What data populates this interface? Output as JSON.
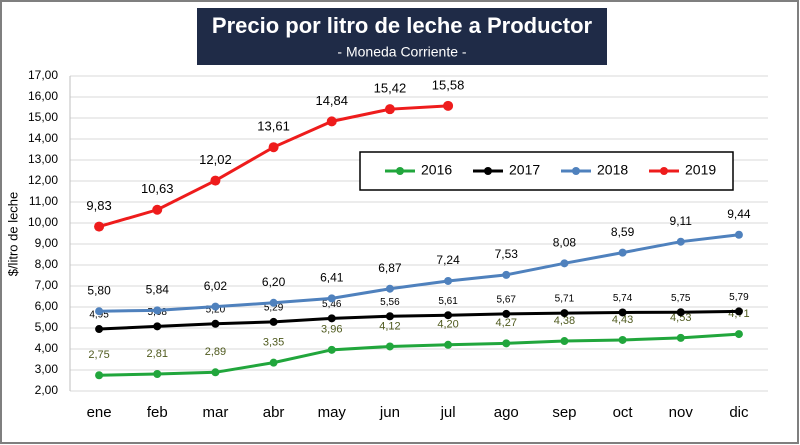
{
  "chart_data": {
    "type": "line",
    "title": "Precio por litro de leche a Productor",
    "subtitle": "- Moneda Corriente -",
    "y_label": "$/litro de leche",
    "categories": [
      "ene",
      "feb",
      "mar",
      "abr",
      "may",
      "jun",
      "jul",
      "ago",
      "sep",
      "oct",
      "nov",
      "dic"
    ],
    "ylim": [
      2,
      17
    ],
    "yticks": [
      {
        "value": 2,
        "label": "2,00"
      },
      {
        "value": 3,
        "label": "3,00"
      },
      {
        "value": 4,
        "label": "4,00"
      },
      {
        "value": 5,
        "label": "5,00"
      },
      {
        "value": 6,
        "label": "6,00"
      },
      {
        "value": 7,
        "label": "7,00"
      },
      {
        "value": 8,
        "label": "8,00"
      },
      {
        "value": 9,
        "label": "9,00"
      },
      {
        "value": 10,
        "label": "10,00"
      },
      {
        "value": 11,
        "label": "11,00"
      },
      {
        "value": 12,
        "label": "12,00"
      },
      {
        "value": 13,
        "label": "13,00"
      },
      {
        "value": 14,
        "label": "14,00"
      },
      {
        "value": 15,
        "label": "15,00"
      },
      {
        "value": 16,
        "label": "16,00"
      },
      {
        "value": 17,
        "label": "17,00"
      }
    ],
    "grid": true,
    "series": [
      {
        "name": "2016",
        "color": "#21a63c",
        "label_color": "#4f5a1e",
        "values": [
          2.75,
          2.81,
          2.89,
          3.35,
          3.96,
          4.12,
          4.2,
          4.27,
          4.38,
          4.43,
          4.53,
          4.71
        ],
        "value_labels": [
          "2,75",
          "2,81",
          "2,89",
          "3,35",
          "3,96",
          "4,12",
          "4,20",
          "4,27",
          "4,38",
          "4,43",
          "4,53",
          "4,71"
        ]
      },
      {
        "name": "2017",
        "color": "#000000",
        "label_color": "#000000",
        "values": [
          4.95,
          5.08,
          5.2,
          5.29,
          5.46,
          5.56,
          5.61,
          5.67,
          5.71,
          5.74,
          5.75,
          5.79
        ],
        "value_labels": [
          "4,95",
          "5,08",
          "5,20",
          "5,29",
          "5,46",
          "5,56",
          "5,61",
          "5,67",
          "5,71",
          "5,74",
          "5,75",
          "5,79"
        ]
      },
      {
        "name": "2018",
        "color": "#4f81bd",
        "label_color": "#000000",
        "values": [
          5.8,
          5.84,
          6.02,
          6.2,
          6.41,
          6.87,
          7.24,
          7.53,
          8.08,
          8.59,
          9.11,
          9.44
        ],
        "value_labels": [
          "5,80",
          "5,84",
          "6,02",
          "6,20",
          "6,41",
          "6,87",
          "7,24",
          "7,53",
          "8,08",
          "8,59",
          "9,11",
          "9,44"
        ]
      },
      {
        "name": "2019",
        "color": "#ee1c1c",
        "label_color": "#000000",
        "values": [
          9.83,
          10.63,
          12.02,
          13.61,
          14.84,
          15.42,
          15.58,
          null,
          null,
          null,
          null,
          null
        ],
        "value_labels": [
          "9,83",
          "10,63",
          "12,02",
          "13,61",
          "14,84",
          "15,42",
          "15,58",
          null,
          null,
          null,
          null,
          null
        ]
      }
    ]
  }
}
